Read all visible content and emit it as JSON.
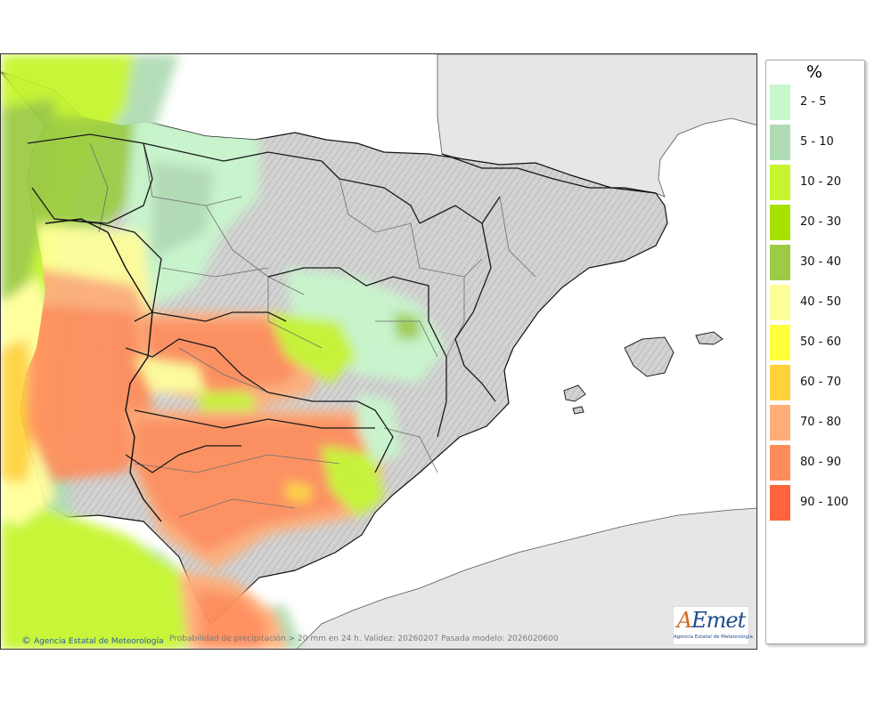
{
  "legend": {
    "title": "%",
    "items": [
      {
        "label": "2 - 5",
        "color": "#c8f7cc"
      },
      {
        "label": "5 - 10",
        "color": "#b0dcb4"
      },
      {
        "label": "10 - 20",
        "color": "#c6f52f"
      },
      {
        "label": "20 - 30",
        "color": "#a7e100"
      },
      {
        "label": "30 - 40",
        "color": "#9ccc45"
      },
      {
        "label": "40 - 50",
        "color": "#ffff99"
      },
      {
        "label": "50 - 60",
        "color": "#ffff3c"
      },
      {
        "label": "60 - 70",
        "color": "#ffd23c"
      },
      {
        "label": "70 - 80",
        "color": "#ffad78"
      },
      {
        "label": "80 - 90",
        "color": "#ff8c5a"
      },
      {
        "label": "90 - 100",
        "color": "#ff643c"
      }
    ]
  },
  "footer": {
    "credit_symbol": "©",
    "credit": "Agencia Estatal de Meteorología",
    "caption": "Probabilidad de precipitación > 20 mm en 24 h. Validez: 20260207 Pasada modelo: 2026020600"
  },
  "logo": {
    "text_a": "A",
    "text_rest": "Emet",
    "subtitle": "Agencia Estatal de Meteorología"
  },
  "colors": {
    "sea": "#ffffff",
    "foreign_land": "#e6e6e6",
    "land": "#cfcfcf",
    "border": "#1a1a1a",
    "region_line": "#6e6e6e"
  }
}
